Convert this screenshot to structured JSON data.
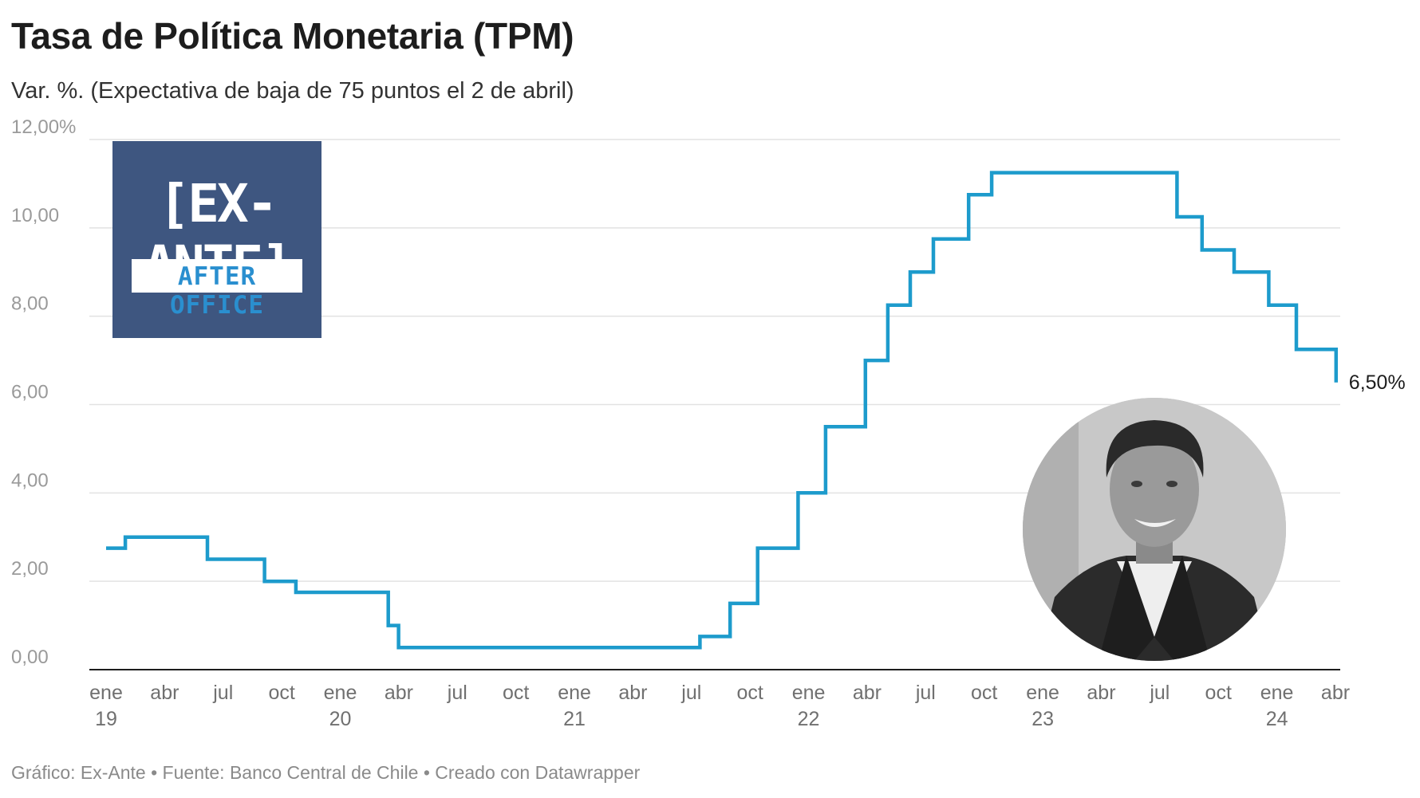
{
  "header": {
    "title": "Tasa de Política Monetaria (TPM)",
    "subtitle": "Var. %. (Expectativa de baja de 75 puntos el 2 de abril)"
  },
  "footer": {
    "text": "Gráfico: Ex-Ante • Fuente: Banco Central de Chile • Creado con Datawrapper"
  },
  "logo": {
    "top_text": "[EX-ANTE]",
    "bottom_text": "AFTER OFFICE",
    "background": "#3e5680",
    "accent": "#2a8fcf"
  },
  "chart_data": {
    "type": "line",
    "line_style": "step",
    "title": "Tasa de Política Monetaria (TPM)",
    "subtitle": "Var. %. (Expectativa de baja de 75 puntos el 2 de abril)",
    "xlabel": "",
    "ylabel": "",
    "color": "#1d9bcc",
    "ylim": [
      0,
      12
    ],
    "grid": true,
    "y_ticks": [
      "0,00",
      "2,00",
      "4,00",
      "6,00",
      "8,00",
      "10,00",
      "12,00%"
    ],
    "x_ticks": [
      {
        "month": "ene",
        "year": "19"
      },
      {
        "month": "abr",
        "year": ""
      },
      {
        "month": "jul",
        "year": ""
      },
      {
        "month": "oct",
        "year": ""
      },
      {
        "month": "ene",
        "year": "20"
      },
      {
        "month": "abr",
        "year": ""
      },
      {
        "month": "jul",
        "year": ""
      },
      {
        "month": "oct",
        "year": ""
      },
      {
        "month": "ene",
        "year": "21"
      },
      {
        "month": "abr",
        "year": ""
      },
      {
        "month": "jul",
        "year": ""
      },
      {
        "month": "oct",
        "year": ""
      },
      {
        "month": "ene",
        "year": "22"
      },
      {
        "month": "abr",
        "year": ""
      },
      {
        "month": "jul",
        "year": ""
      },
      {
        "month": "oct",
        "year": ""
      },
      {
        "month": "ene",
        "year": "23"
      },
      {
        "month": "abr",
        "year": ""
      },
      {
        "month": "jul",
        "year": ""
      },
      {
        "month": "oct",
        "year": ""
      },
      {
        "month": "ene",
        "year": "24"
      },
      {
        "month": "abr",
        "year": ""
      }
    ],
    "end_label": "6,50%",
    "series": [
      {
        "points": [
          [
            "2019-01-01",
            2.75
          ],
          [
            "2019-01-31",
            2.75
          ],
          [
            "2019-01-31",
            3.0
          ],
          [
            "2019-06-08",
            3.0
          ],
          [
            "2019-06-08",
            2.5
          ],
          [
            "2019-09-05",
            2.5
          ],
          [
            "2019-09-05",
            2.0
          ],
          [
            "2019-10-24",
            2.0
          ],
          [
            "2019-10-24",
            1.75
          ],
          [
            "2020-03-16",
            1.75
          ],
          [
            "2020-03-16",
            1.0
          ],
          [
            "2020-04-01",
            1.0
          ],
          [
            "2020-04-01",
            0.5
          ],
          [
            "2021-07-15",
            0.5
          ],
          [
            "2021-07-15",
            0.75
          ],
          [
            "2021-08-31",
            0.75
          ],
          [
            "2021-08-31",
            1.5
          ],
          [
            "2021-10-13",
            1.5
          ],
          [
            "2021-10-13",
            2.75
          ],
          [
            "2021-12-15",
            2.75
          ],
          [
            "2021-12-15",
            4.0
          ],
          [
            "2022-01-27",
            4.0
          ],
          [
            "2022-01-27",
            5.5
          ],
          [
            "2022-03-30",
            5.5
          ],
          [
            "2022-03-30",
            7.0
          ],
          [
            "2022-05-04",
            7.0
          ],
          [
            "2022-05-04",
            8.25
          ],
          [
            "2022-06-08",
            8.25
          ],
          [
            "2022-06-08",
            9.0
          ],
          [
            "2022-07-14",
            9.0
          ],
          [
            "2022-07-14",
            9.75
          ],
          [
            "2022-09-07",
            9.75
          ],
          [
            "2022-09-07",
            10.75
          ],
          [
            "2022-10-13",
            10.75
          ],
          [
            "2022-10-13",
            11.25
          ],
          [
            "2023-07-29",
            11.25
          ],
          [
            "2023-07-29",
            10.25
          ],
          [
            "2023-09-06",
            10.25
          ],
          [
            "2023-09-06",
            9.5
          ],
          [
            "2023-10-26",
            9.5
          ],
          [
            "2023-10-26",
            9.0
          ],
          [
            "2023-12-19",
            9.0
          ],
          [
            "2023-12-19",
            8.25
          ],
          [
            "2024-01-31",
            8.25
          ],
          [
            "2024-01-31",
            7.25
          ],
          [
            "2024-04-02",
            7.25
          ],
          [
            "2024-04-02",
            6.5
          ]
        ]
      }
    ]
  }
}
